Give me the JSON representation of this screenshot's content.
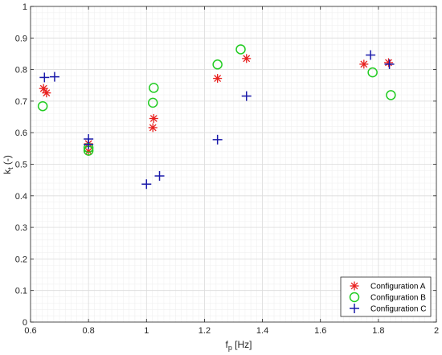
{
  "chart_data": {
    "type": "scatter",
    "title": "",
    "xlabel": "f",
    "xlabel_sub": "p",
    "xlabel_unit": " [Hz]",
    "ylabel": "k",
    "ylabel_sub": "t",
    "ylabel_unit": " (-)",
    "xlim": [
      0.6,
      2.0
    ],
    "ylim": [
      0.0,
      1.0
    ],
    "x_ticks": [
      "0.6",
      "0.8",
      "1",
      "1.2",
      "1.4",
      "1.6",
      "1.8",
      "2"
    ],
    "y_ticks": [
      "0",
      "0.1",
      "0.2",
      "0.3",
      "0.4",
      "0.5",
      "0.6",
      "0.7",
      "0.8",
      "0.9",
      "1"
    ],
    "grid": true,
    "minor_grid": true,
    "legend_position": "bottom-right",
    "series": [
      {
        "name": "Configuration A",
        "marker": "asterisk",
        "color": "#e8201e",
        "points": [
          {
            "x": 0.645,
            "y": 0.74
          },
          {
            "x": 0.655,
            "y": 0.726
          },
          {
            "x": 0.8,
            "y": 0.565
          },
          {
            "x": 0.8,
            "y": 0.541
          },
          {
            "x": 1.022,
            "y": 0.616
          },
          {
            "x": 1.025,
            "y": 0.645
          },
          {
            "x": 1.245,
            "y": 0.772
          },
          {
            "x": 1.345,
            "y": 0.835
          },
          {
            "x": 1.75,
            "y": 0.817
          },
          {
            "x": 1.835,
            "y": 0.822
          }
        ]
      },
      {
        "name": "Configuration B",
        "marker": "circle",
        "color": "#22cc22",
        "points": [
          {
            "x": 0.642,
            "y": 0.684
          },
          {
            "x": 0.8,
            "y": 0.552
          },
          {
            "x": 0.8,
            "y": 0.543
          },
          {
            "x": 1.022,
            "y": 0.695
          },
          {
            "x": 1.025,
            "y": 0.742
          },
          {
            "x": 1.245,
            "y": 0.816
          },
          {
            "x": 1.325,
            "y": 0.864
          },
          {
            "x": 1.78,
            "y": 0.791
          },
          {
            "x": 1.843,
            "y": 0.719
          }
        ]
      },
      {
        "name": "Configuration C",
        "marker": "plus",
        "color": "#1a1aaa",
        "points": [
          {
            "x": 0.648,
            "y": 0.775
          },
          {
            "x": 0.683,
            "y": 0.777
          },
          {
            "x": 0.8,
            "y": 0.58
          },
          {
            "x": 0.8,
            "y": 0.563
          },
          {
            "x": 1.0,
            "y": 0.437
          },
          {
            "x": 1.045,
            "y": 0.463
          },
          {
            "x": 1.245,
            "y": 0.578
          },
          {
            "x": 1.345,
            "y": 0.716
          },
          {
            "x": 1.773,
            "y": 0.846
          },
          {
            "x": 1.838,
            "y": 0.817
          }
        ]
      }
    ]
  }
}
